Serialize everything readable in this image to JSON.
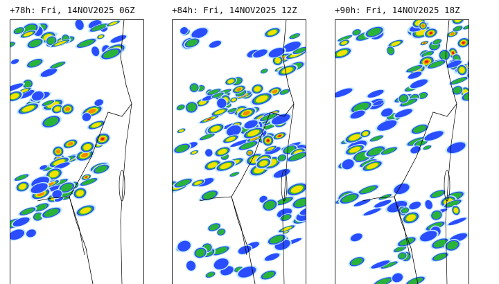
{
  "panels": [
    {
      "title": "+78h: Fri, 14NOV2025 06Z"
    },
    {
      "title": "+84h: Fri, 14NOV2025 12Z"
    },
    {
      "title": "+90h: Fri, 14NOV2025 18Z"
    }
  ]
}
